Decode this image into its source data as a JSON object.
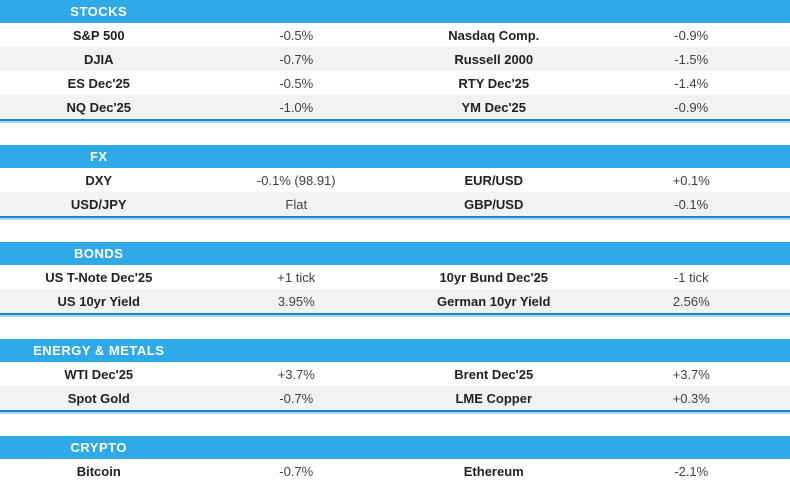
{
  "colors": {
    "header_bg": "#30a9e8",
    "row_alt_bg": "#f2f2f2",
    "separator_dark": "#1d85d6",
    "separator_light": "#a6d9f7",
    "label_text": "#231f20",
    "value_text": "#414042",
    "header_text": "#ffffff"
  },
  "sections": [
    {
      "title": "STOCKS",
      "rows": [
        [
          "S&P 500",
          "-0.5%",
          "Nasdaq Comp.",
          "-0.9%"
        ],
        [
          "DJIA",
          "-0.7%",
          "Russell 2000",
          "-1.5%"
        ],
        [
          "ES Dec'25",
          "-0.5%",
          "RTY Dec'25",
          "-1.4%"
        ],
        [
          "NQ Dec'25",
          "-1.0%",
          "YM Dec'25",
          "-0.9%"
        ]
      ]
    },
    {
      "title": "FX",
      "rows": [
        [
          "DXY",
          "-0.1% (98.91)",
          "EUR/USD",
          "+0.1%"
        ],
        [
          "USD/JPY",
          "Flat",
          "GBP/USD",
          "-0.1%"
        ]
      ]
    },
    {
      "title": "BONDS",
      "rows": [
        [
          "US T-Note Dec'25",
          "+1 tick",
          "10yr Bund Dec'25",
          "-1 tick"
        ],
        [
          "US 10yr Yield",
          "3.95%",
          "German 10yr Yield",
          "2.56%"
        ]
      ]
    },
    {
      "title": "ENERGY & METALS",
      "rows": [
        [
          "WTI Dec'25",
          "+3.7%",
          "Brent Dec'25",
          "+3.7%"
        ],
        [
          "Spot Gold",
          "-0.7%",
          "LME Copper",
          "+0.3%"
        ]
      ]
    },
    {
      "title": "CRYPTO",
      "rows": [
        [
          "Bitcoin",
          "-0.7%",
          "Ethereum",
          "-2.1%"
        ]
      ]
    }
  ]
}
